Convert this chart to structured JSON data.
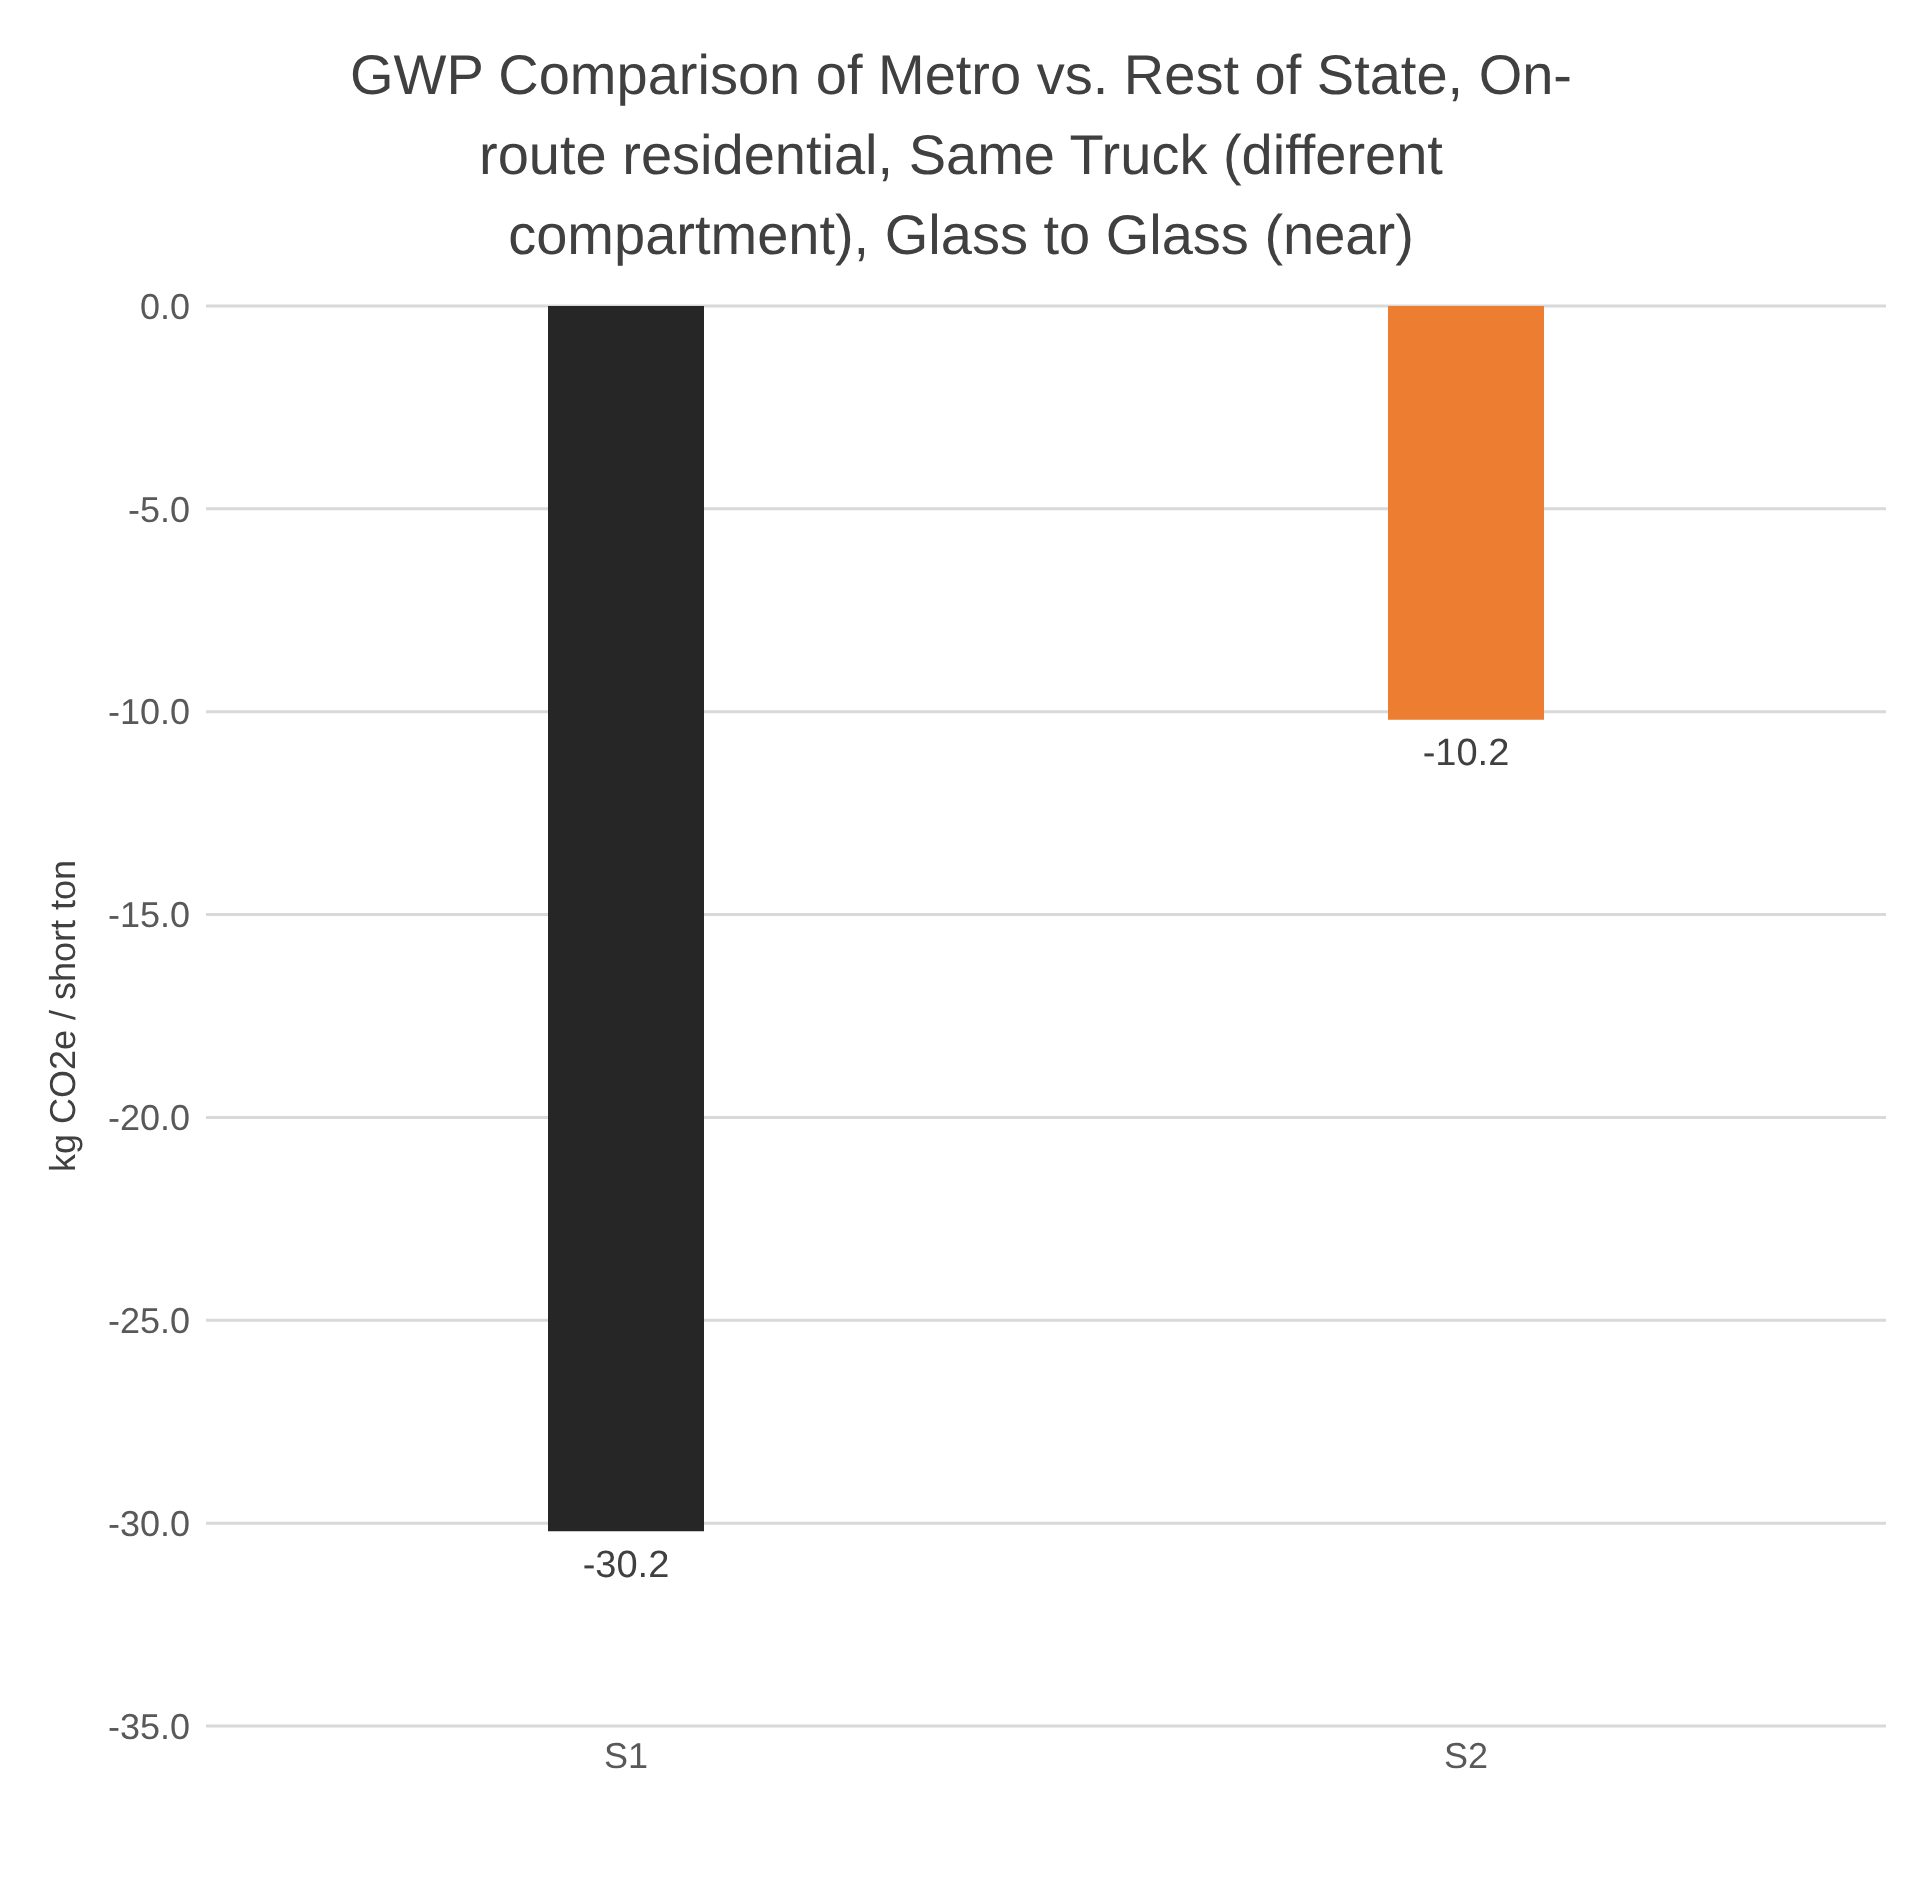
{
  "chart_data": {
    "type": "bar",
    "title": "GWP Comparison of Metro vs. Rest of State, On-route residential, Same Truck (different compartment), Glass to Glass (near)",
    "ylabel": "kg CO2e / short ton",
    "categories": [
      "S1",
      "S2"
    ],
    "values": [
      -30.2,
      -10.2
    ],
    "colors": [
      "#262626",
      "#ed7d31"
    ],
    "ylim": [
      -35,
      0
    ],
    "yticks": [
      {
        "value": 0,
        "label": "0.0"
      },
      {
        "value": -5,
        "label": "-5.0"
      },
      {
        "value": -10,
        "label": "-10.0"
      },
      {
        "value": -15,
        "label": "-15.0"
      },
      {
        "value": -20,
        "label": "-20.0"
      },
      {
        "value": -25,
        "label": "-25.0"
      },
      {
        "value": -30,
        "label": "-30.0"
      },
      {
        "value": -35,
        "label": "-35.0"
      }
    ],
    "grid": "y",
    "data_labels": true,
    "legend": false
  }
}
